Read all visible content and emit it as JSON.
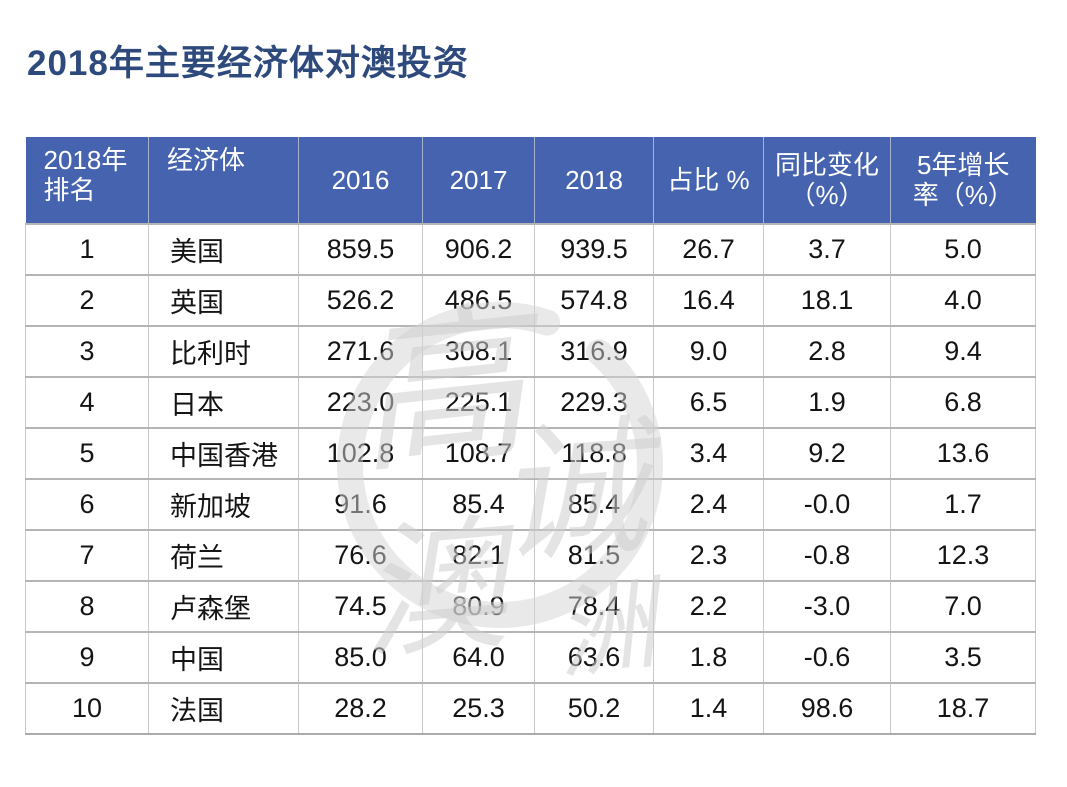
{
  "chart_data": {
    "type": "table",
    "title": "2018年主要经济体对澳投资",
    "columns": [
      "2018年\n排名",
      "经济体",
      "2016",
      "2017",
      "2018",
      "占比 %",
      "同比变化\n（%）",
      "5年增长\n率（%）"
    ],
    "rows": [
      [
        "1",
        "美国",
        "859.5",
        "906.2",
        "939.5",
        "26.7",
        "3.7",
        "5.0"
      ],
      [
        "2",
        "英国",
        "526.2",
        "486.5",
        "574.8",
        "16.4",
        "18.1",
        "4.0"
      ],
      [
        "3",
        "比利时",
        "271.6",
        "308.1",
        "316.9",
        "9.0",
        "2.8",
        "9.4"
      ],
      [
        "4",
        "日本",
        "223.0",
        "225.1",
        "229.3",
        "6.5",
        "1.9",
        "6.8"
      ],
      [
        "5",
        "中国香港",
        "102.8",
        "108.7",
        "118.8",
        "3.4",
        "9.2",
        "13.6"
      ],
      [
        "6",
        "新加坡",
        "91.6",
        "85.4",
        "85.4",
        "2.4",
        "-0.0",
        "1.7"
      ],
      [
        "7",
        "荷兰",
        "76.6",
        "82.1",
        "81.5",
        "2.3",
        "-0.8",
        "12.3"
      ],
      [
        "8",
        "卢森堡",
        "74.5",
        "80.9",
        "78.4",
        "2.2",
        "-3.0",
        "7.0"
      ],
      [
        "9",
        "中国",
        "85.0",
        "64.0",
        "63.6",
        "1.8",
        "-0.6",
        "3.5"
      ],
      [
        "10",
        "法国",
        "28.2",
        "25.3",
        "50.2",
        "1.4",
        "98.6",
        "18.7"
      ]
    ],
    "layout_hints": {
      "header_background": "#4563AE",
      "header_text_color": "#FFFFFF",
      "grid": true
    }
  },
  "colors": {
    "title_text": "#2E4A7D",
    "header_background": "#4563AE",
    "header_text": "#FFFFFF",
    "body_text": "#141414",
    "grid_line": "#B5B5B5",
    "watermark_gray": "#D4D4D4"
  },
  "watermark": {
    "char1": "高",
    "char2": "诚",
    "char3": "澳",
    "char4": "洲"
  }
}
